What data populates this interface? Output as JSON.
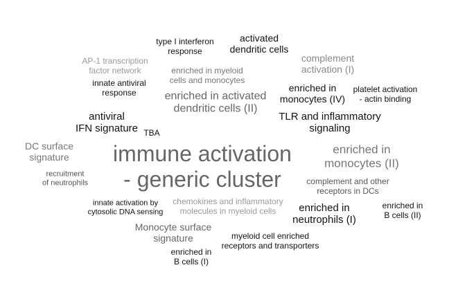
{
  "words": {
    "type_i_interferon": "type I interferon\nresponse",
    "activated_dc": "activated\ndendritic cells",
    "ap1": "AP-1 transcription\nfactor network",
    "complement_activation": "complement\nactivation (I)",
    "enriched_myeloid": "enriched in myeloid\ncells and monocytes",
    "innate_antiviral": "innate antiviral\nresponse",
    "enriched_activated_dc": "enriched in activated\ndendritic cells (II)",
    "enriched_monocytes_iv": "enriched in\nmonocytes (IV)",
    "platelet": "platelet activation\n- actin binding",
    "antiviral_ifn": "antiviral\nIFN signature",
    "tba": "TBA",
    "tlr": "TLR and inflammatory\nsignaling",
    "dc_surface": "DC surface\nsignature",
    "immune_activation": "immune activation\n- generic cluster",
    "enriched_monocytes_ii": "enriched in\nmonocytes (II)",
    "recruitment_neutrophils": "recruitment\nof neutrophils",
    "complement_receptors": "complement and other\nreceptors in DCs",
    "innate_cytosolic": "innate activation by\ncytosolic DNA sensing",
    "chemokines": "chemokines and inflammatory\nmolecules in myeloid cells",
    "enriched_neutrophils": "enriched in\nneutrophils (I)",
    "enriched_b_ii": "enriched in\nB cells (II)",
    "monocyte_surface": "Monocyte surface\nsignature",
    "myeloid_receptors": "myeloid cell enriched\nreceptors and transporters",
    "enriched_b_i": "enriched in\nB cells (I)"
  }
}
